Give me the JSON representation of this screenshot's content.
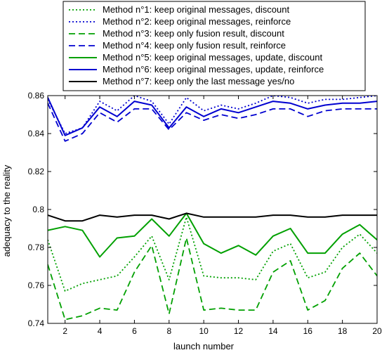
{
  "chart_data": {
    "type": "line",
    "title": "",
    "xlabel": "launch number",
    "ylabel": "adequacy to the reality",
    "xlim": [
      1,
      20
    ],
    "ylim": [
      0.74,
      0.86
    ],
    "xticks": [
      2,
      4,
      6,
      8,
      10,
      12,
      14,
      16,
      18,
      20
    ],
    "xtick_labels": [
      "2",
      "4",
      "6",
      "8",
      "10",
      "12",
      "14",
      "16",
      "18",
      "20"
    ],
    "yticks": [
      0.74,
      0.76,
      0.78,
      0.8,
      0.82,
      0.84,
      0.86
    ],
    "ytick_labels": [
      "0.74",
      "0.76",
      "0.78",
      "0.8",
      "0.82",
      "0.84",
      "0.86"
    ],
    "grid": false,
    "legend_position": "top (above plot)",
    "x": [
      1,
      2,
      3,
      4,
      5,
      6,
      7,
      8,
      9,
      10,
      11,
      12,
      13,
      14,
      15,
      16,
      17,
      18,
      19,
      20
    ],
    "series": [
      {
        "name": "Method n°1: keep original messages, discount",
        "color": "#00a000",
        "dash": "dotted",
        "values": [
          0.784,
          0.757,
          0.761,
          0.763,
          0.765,
          0.775,
          0.786,
          0.763,
          0.796,
          0.765,
          0.764,
          0.764,
          0.763,
          0.778,
          0.782,
          0.764,
          0.767,
          0.78,
          0.787,
          0.777
        ]
      },
      {
        "name": "Method n°2: keep original messages, reinforce",
        "color": "#0000d0",
        "dash": "dotted",
        "values": [
          0.858,
          0.84,
          0.843,
          0.857,
          0.852,
          0.86,
          0.857,
          0.845,
          0.859,
          0.852,
          0.855,
          0.853,
          0.856,
          0.86,
          0.859,
          0.856,
          0.858,
          0.858,
          0.859,
          0.86
        ]
      },
      {
        "name": "Method n°3: keep only fusion result, discount",
        "color": "#00a000",
        "dash": "dashed",
        "values": [
          0.771,
          0.742,
          0.744,
          0.748,
          0.747,
          0.767,
          0.781,
          0.745,
          0.785,
          0.747,
          0.748,
          0.747,
          0.747,
          0.767,
          0.773,
          0.747,
          0.752,
          0.769,
          0.777,
          0.765
        ]
      },
      {
        "name": "Method n°4: keep only fusion result, reinforce",
        "color": "#0000d0",
        "dash": "dashed",
        "values": [
          0.856,
          0.836,
          0.84,
          0.851,
          0.846,
          0.853,
          0.853,
          0.842,
          0.851,
          0.847,
          0.85,
          0.848,
          0.85,
          0.853,
          0.853,
          0.849,
          0.852,
          0.853,
          0.853,
          0.853
        ]
      },
      {
        "name": "Method n°5: keep original messages, update, discount",
        "color": "#00a000",
        "dash": "solid",
        "values": [
          0.789,
          0.791,
          0.789,
          0.775,
          0.785,
          0.786,
          0.795,
          0.786,
          0.798,
          0.782,
          0.777,
          0.781,
          0.776,
          0.786,
          0.79,
          0.777,
          0.777,
          0.787,
          0.792,
          0.784
        ]
      },
      {
        "name": "Method n°6: keep original messages, update, reinforce",
        "color": "#0000d0",
        "dash": "solid",
        "values": [
          0.859,
          0.839,
          0.843,
          0.854,
          0.849,
          0.857,
          0.855,
          0.843,
          0.854,
          0.849,
          0.853,
          0.851,
          0.854,
          0.857,
          0.856,
          0.853,
          0.855,
          0.856,
          0.856,
          0.857
        ]
      },
      {
        "name": "Method n°7: keep only the last message yes/no",
        "color": "#000000",
        "dash": "solid",
        "values": [
          0.797,
          0.794,
          0.794,
          0.797,
          0.796,
          0.797,
          0.797,
          0.795,
          0.798,
          0.796,
          0.796,
          0.796,
          0.796,
          0.797,
          0.797,
          0.796,
          0.796,
          0.797,
          0.797,
          0.797
        ]
      }
    ]
  }
}
